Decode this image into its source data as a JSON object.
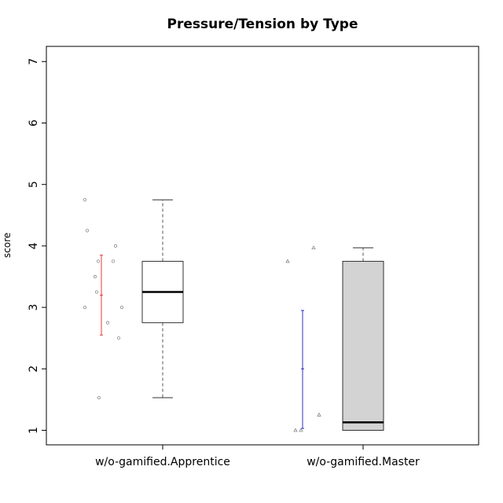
{
  "chart_data": {
    "type": "box",
    "title": "Pressure/Tension by Type",
    "xlabel": "",
    "ylabel": "score",
    "ylim": [
      0.75,
      7.25
    ],
    "yticks": [
      "1",
      "2",
      "3",
      "4",
      "5",
      "6",
      "7"
    ],
    "grid": false,
    "categories": [
      "w/o-gamified.Apprentice",
      "w/o-gamified.Master"
    ],
    "boxes": [
      {
        "category": "w/o-gamified.Apprentice",
        "fill": "#ffffff",
        "whisker_low": 1.53,
        "q1": 2.75,
        "median": 3.25,
        "q3": 3.75,
        "whisker_high": 4.75,
        "points": [
          4.75,
          4.25,
          4.0,
          3.75,
          3.75,
          3.5,
          3.25,
          3.0,
          3.0,
          2.75,
          2.5,
          1.53
        ],
        "point_marker": "circle",
        "mean": 3.2,
        "mean_error": [
          2.55,
          3.85
        ],
        "error_color": "#e8383b"
      },
      {
        "category": "w/o-gamified.Master",
        "fill": "#d3d3d3",
        "whisker_low": 1.0,
        "q1": 1.0,
        "median": 1.13,
        "q3": 3.75,
        "whisker_high": 3.97,
        "points": [
          3.75,
          3.97,
          1.25,
          1.0,
          1.0
        ],
        "point_marker": "triangle",
        "mean": 2.0,
        "mean_error": [
          1.03,
          2.95
        ],
        "error_color": "#3030c0"
      }
    ]
  }
}
